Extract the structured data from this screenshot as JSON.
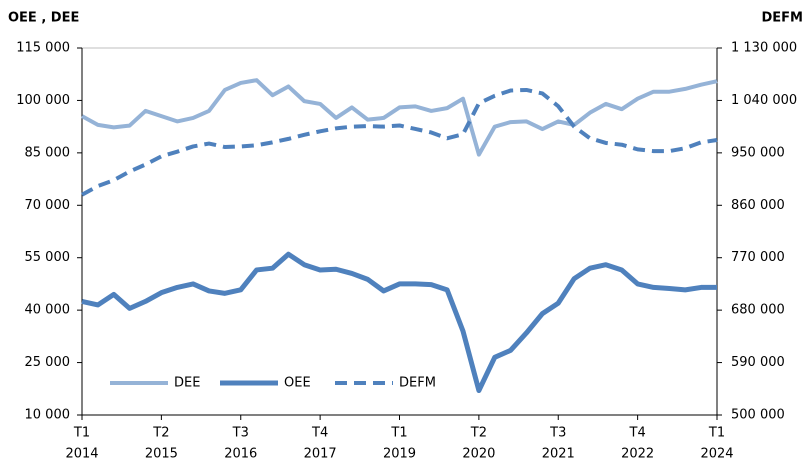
{
  "chart_data": {
    "type": "line",
    "y_title": "OEE , DEE",
    "y2_title": "DEFM",
    "categories": [
      "T1",
      null,
      null,
      null,
      null,
      "T2",
      null,
      null,
      null,
      null,
      "T3",
      null,
      null,
      null,
      null,
      "T4",
      null,
      null,
      null,
      null,
      "T1",
      null,
      null,
      null,
      null,
      "T2",
      null,
      null,
      null,
      null,
      "T3",
      null,
      null,
      null,
      null,
      "T4",
      null,
      null,
      null,
      null,
      "T1"
    ],
    "category_years": [
      "2014",
      null,
      null,
      null,
      null,
      "2015",
      null,
      null,
      null,
      null,
      "2016",
      null,
      null,
      null,
      null,
      "2017",
      null,
      null,
      null,
      null,
      "2019",
      null,
      null,
      null,
      null,
      "2020",
      null,
      null,
      null,
      null,
      "2021",
      null,
      null,
      null,
      null,
      "2022",
      null,
      null,
      null,
      null,
      "2024"
    ],
    "series": [
      {
        "name": "DEE",
        "color": "#95b3d7",
        "line_style": "solid",
        "axis": "y",
        "values": [
          95500,
          93000,
          92300,
          92800,
          97000,
          95500,
          94000,
          95000,
          97000,
          103000,
          105000,
          105800,
          101500,
          104000,
          99800,
          99000,
          95000,
          98000,
          94500,
          95000,
          98000,
          98300,
          97000,
          97800,
          100500,
          84500,
          92500,
          93800,
          94000,
          91800,
          94000,
          93000,
          96500,
          99000,
          97500,
          100500,
          102500,
          102500,
          103300,
          104500,
          105500
        ]
      },
      {
        "name": "OEE",
        "color": "#4f81bd",
        "line_style": "solid",
        "axis": "y",
        "values": [
          42500,
          41500,
          44500,
          40500,
          42500,
          45000,
          46500,
          47500,
          45500,
          44800,
          45800,
          51500,
          52000,
          56000,
          53000,
          51500,
          51700,
          50500,
          48800,
          45500,
          47500,
          47500,
          47300,
          45800,
          34000,
          17000,
          26500,
          28500,
          33500,
          39000,
          42000,
          49000,
          52000,
          53000,
          51500,
          47500,
          46500,
          46200,
          45800,
          46500,
          46500
        ]
      },
      {
        "name": "DEFM",
        "color": "#4f81bd",
        "line_style": "dashed",
        "axis": "y2",
        "values": [
          878000,
          893000,
          903000,
          918000,
          930000,
          944000,
          952000,
          961000,
          966000,
          960000,
          961000,
          963000,
          968000,
          974000,
          981000,
          987000,
          992000,
          995000,
          996000,
          995000,
          997000,
          991000,
          985000,
          975000,
          982000,
          1035000,
          1048000,
          1057000,
          1058000,
          1052000,
          1030000,
          995000,
          975000,
          967000,
          964000,
          956000,
          953000,
          953000,
          958000,
          968000,
          972000
        ]
      }
    ],
    "ylim": [
      10000,
      115000
    ],
    "yticks": [
      {
        "value": 10000,
        "label": "10 000"
      },
      {
        "value": 25000,
        "label": "25 000"
      },
      {
        "value": 40000,
        "label": "40 000"
      },
      {
        "value": 55000,
        "label": "55 000"
      },
      {
        "value": 70000,
        "label": "70 000"
      },
      {
        "value": 85000,
        "label": "85 000"
      },
      {
        "value": 100000,
        "label": "100 000"
      },
      {
        "value": 115000,
        "label": "115 000"
      }
    ],
    "y2lim": [
      500000,
      1130000
    ],
    "y2ticks": [
      {
        "value": 500000,
        "label": "500 000"
      },
      {
        "value": 590000,
        "label": "590 000"
      },
      {
        "value": 680000,
        "label": "680 000"
      },
      {
        "value": 770000,
        "label": "770 000"
      },
      {
        "value": 860000,
        "label": "860 000"
      },
      {
        "value": 950000,
        "label": "950 000"
      },
      {
        "value": 1040000,
        "label": "1 040 000"
      },
      {
        "value": 1130000,
        "label": "1 130 000"
      }
    ],
    "grid": false,
    "legend": "lower left"
  }
}
